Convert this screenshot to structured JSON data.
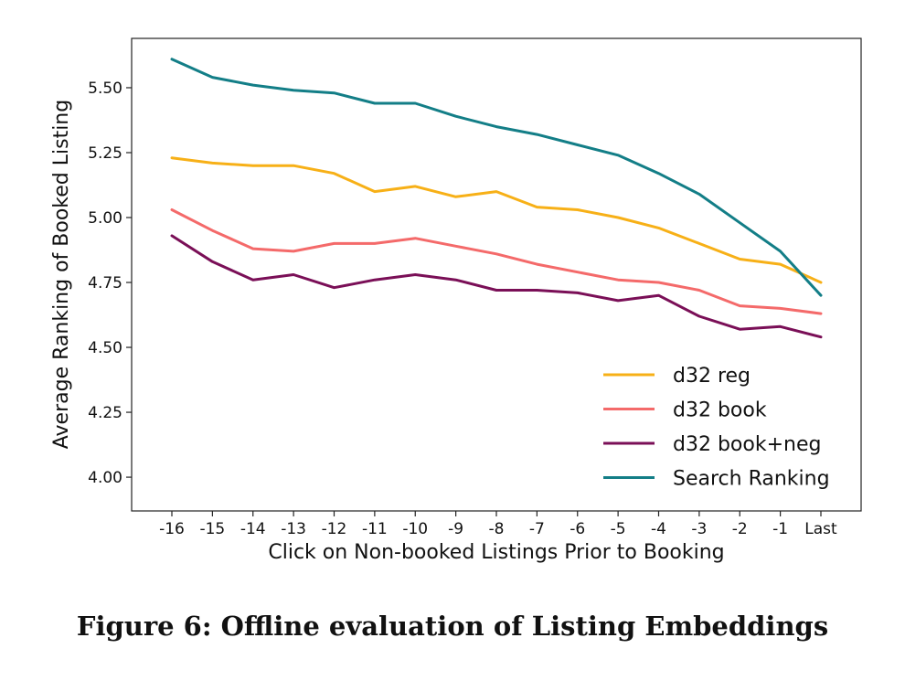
{
  "caption": "Figure 6: Offline evaluation of Listing Embeddings",
  "chart_data": {
    "type": "line",
    "xlabel": "Click on Non-booked Listings Prior to Booking",
    "ylabel": "Average Ranking of Booked Listing",
    "categories": [
      "-16",
      "-15",
      "-14",
      "-13",
      "-12",
      "-11",
      "-10",
      "-9",
      "-8",
      "-7",
      "-6",
      "-5",
      "-4",
      "-3",
      "-2",
      "-1",
      "Last"
    ],
    "ylim": [
      3.87,
      5.69
    ],
    "yticks": [
      "4.00",
      "4.25",
      "4.50",
      "4.75",
      "5.00",
      "5.25",
      "5.50"
    ],
    "grid": false,
    "legend_position": "bottom-right",
    "series": [
      {
        "name": "d32 reg",
        "color": "#F7B017",
        "values": [
          5.23,
          5.21,
          5.2,
          5.2,
          5.17,
          5.1,
          5.12,
          5.08,
          5.1,
          5.04,
          5.03,
          5.0,
          4.96,
          4.9,
          4.84,
          4.82,
          4.75
        ]
      },
      {
        "name": "d32 book",
        "color": "#F46A6A",
        "values": [
          5.03,
          4.95,
          4.88,
          4.87,
          4.9,
          4.9,
          4.92,
          4.89,
          4.86,
          4.82,
          4.79,
          4.76,
          4.75,
          4.72,
          4.66,
          4.65,
          4.63
        ]
      },
      {
        "name": "d32 book+neg",
        "color": "#7A0F57",
        "values": [
          4.93,
          4.83,
          4.76,
          4.78,
          4.73,
          4.76,
          4.78,
          4.76,
          4.72,
          4.72,
          4.71,
          4.68,
          4.7,
          4.62,
          4.57,
          4.58,
          4.54
        ]
      },
      {
        "name": "Search Ranking",
        "color": "#137E87",
        "values": [
          5.61,
          5.54,
          5.51,
          5.49,
          5.48,
          5.44,
          5.44,
          5.39,
          5.35,
          5.32,
          5.28,
          5.24,
          5.17,
          5.09,
          4.98,
          4.87,
          4.7
        ]
      }
    ]
  }
}
